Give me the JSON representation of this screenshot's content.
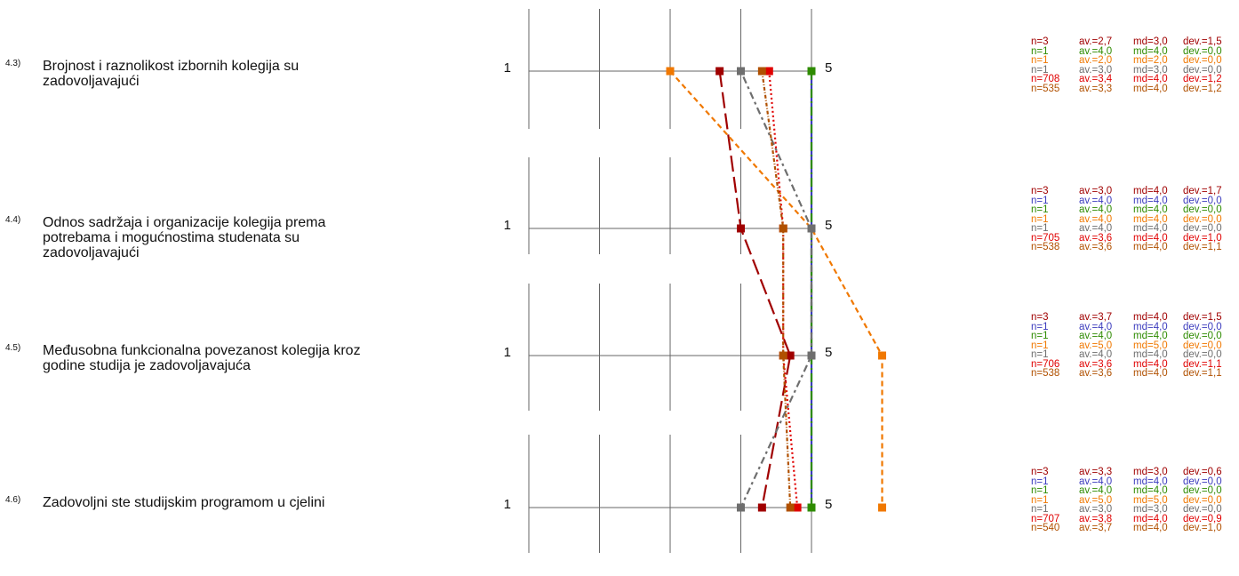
{
  "chart_data": {
    "type": "line",
    "orientation": "horizontal-profile",
    "scale_min_label": "1",
    "scale_max_label": "5",
    "xlim": [
      0,
      5
    ],
    "questions": [
      {
        "num": "4.3)",
        "text": "Brojnost i raznolikost izbornih kolegija su zadovoljavajući"
      },
      {
        "num": "4.4)",
        "text": "Odnos sadržaja i organizacije kolegija prema potrebama i mogućnostima studenata su zadovoljavajući"
      },
      {
        "num": "4.5)",
        "text": "Međusobna funkcionalna povezanost kolegija kroz godine studija je zadovoljavajuća"
      },
      {
        "num": "4.6)",
        "text": "Zadovoljni ste studijskim programom u cjelini"
      }
    ],
    "series": [
      {
        "color": "#a00000",
        "dash": "18,6",
        "values": [
          2.7,
          3.0,
          3.7,
          3.3
        ]
      },
      {
        "color": "#3b3bbd",
        "dash": "",
        "values": [
          4.0,
          4.0,
          4.0,
          4.0
        ]
      },
      {
        "color": "#2e8b00",
        "dash": "10,4,2,4",
        "values": [
          4.0,
          4.0,
          4.0,
          4.0
        ]
      },
      {
        "color": "#f07800",
        "dash": "6,4",
        "values": [
          2.0,
          4.0,
          5.0,
          5.0
        ]
      },
      {
        "color": "#6e6e6e",
        "dash": "3,4,8,4",
        "values": [
          3.0,
          4.0,
          4.0,
          3.0
        ]
      },
      {
        "color": "#e00000",
        "dash": "2,3",
        "values": [
          3.4,
          3.6,
          3.6,
          3.8
        ]
      },
      {
        "color": "#b05000",
        "dash": "4,2,1,2",
        "values": [
          3.3,
          3.6,
          3.6,
          3.7
        ]
      }
    ],
    "stats": [
      [
        {
          "n": "n=3",
          "av": "av.=2,7",
          "md": "md=3,0",
          "dev": "dev.=1,5"
        },
        {
          "n": "n=1",
          "av": "av.=4,0",
          "md": "md=4,0",
          "dev": "dev.=0,0"
        },
        {
          "n": "n=1",
          "av": "av.=2,0",
          "md": "md=2,0",
          "dev": "dev.=0,0"
        },
        {
          "n": "n=1",
          "av": "av.=3,0",
          "md": "md=3,0",
          "dev": "dev.=0,0"
        },
        {
          "n": "n=708",
          "av": "av.=3,4",
          "md": "md=4,0",
          "dev": "dev.=1,2"
        },
        {
          "n": "n=535",
          "av": "av.=3,3",
          "md": "md=4,0",
          "dev": "dev.=1,2"
        }
      ],
      [
        {
          "n": "n=3",
          "av": "av.=3,0",
          "md": "md=4,0",
          "dev": "dev.=1,7"
        },
        {
          "n": "n=1",
          "av": "av.=4,0",
          "md": "md=4,0",
          "dev": "dev.=0,0"
        },
        {
          "n": "n=1",
          "av": "av.=4,0",
          "md": "md=4,0",
          "dev": "dev.=0,0"
        },
        {
          "n": "n=1",
          "av": "av.=4,0",
          "md": "md=4,0",
          "dev": "dev.=0,0"
        },
        {
          "n": "n=1",
          "av": "av.=4,0",
          "md": "md=4,0",
          "dev": "dev.=0,0"
        },
        {
          "n": "n=705",
          "av": "av.=3,6",
          "md": "md=4,0",
          "dev": "dev.=1,0"
        },
        {
          "n": "n=538",
          "av": "av.=3,6",
          "md": "md=4,0",
          "dev": "dev.=1,1"
        }
      ],
      [
        {
          "n": "n=3",
          "av": "av.=3,7",
          "md": "md=4,0",
          "dev": "dev.=1,5"
        },
        {
          "n": "n=1",
          "av": "av.=4,0",
          "md": "md=4,0",
          "dev": "dev.=0,0"
        },
        {
          "n": "n=1",
          "av": "av.=4,0",
          "md": "md=4,0",
          "dev": "dev.=0,0"
        },
        {
          "n": "n=1",
          "av": "av.=5,0",
          "md": "md=5,0",
          "dev": "dev.=0,0"
        },
        {
          "n": "n=1",
          "av": "av.=4,0",
          "md": "md=4,0",
          "dev": "dev.=0,0"
        },
        {
          "n": "n=706",
          "av": "av.=3,6",
          "md": "md=4,0",
          "dev": "dev.=1,1"
        },
        {
          "n": "n=538",
          "av": "av.=3,6",
          "md": "md=4,0",
          "dev": "dev.=1,1"
        }
      ],
      [
        {
          "n": "n=3",
          "av": "av.=3,3",
          "md": "md=3,0",
          "dev": "dev.=0,6"
        },
        {
          "n": "n=1",
          "av": "av.=4,0",
          "md": "md=4,0",
          "dev": "dev.=0,0"
        },
        {
          "n": "n=1",
          "av": "av.=4,0",
          "md": "md=4,0",
          "dev": "dev.=0,0"
        },
        {
          "n": "n=1",
          "av": "av.=5,0",
          "md": "md=5,0",
          "dev": "dev.=0,0"
        },
        {
          "n": "n=1",
          "av": "av.=3,0",
          "md": "md=3,0",
          "dev": "dev.=0,0"
        },
        {
          "n": "n=707",
          "av": "av.=3,8",
          "md": "md=4,0",
          "dev": "dev.=0,9"
        },
        {
          "n": "n=540",
          "av": "av.=3,7",
          "md": "md=4,0",
          "dev": "dev.=1,0"
        }
      ]
    ],
    "stats_colors": [
      [
        "#a00000",
        "#2e8b00",
        "#f07800",
        "#6e6e6e",
        "#e00000",
        "#b05000"
      ],
      [
        "#a00000",
        "#3b3bbd",
        "#2e8b00",
        "#f07800",
        "#6e6e6e",
        "#e00000",
        "#b05000"
      ],
      [
        "#a00000",
        "#3b3bbd",
        "#2e8b00",
        "#f07800",
        "#6e6e6e",
        "#e00000",
        "#b05000"
      ],
      [
        "#a00000",
        "#3b3bbd",
        "#2e8b00",
        "#f07800",
        "#6e6e6e",
        "#e00000",
        "#b05000"
      ]
    ]
  }
}
